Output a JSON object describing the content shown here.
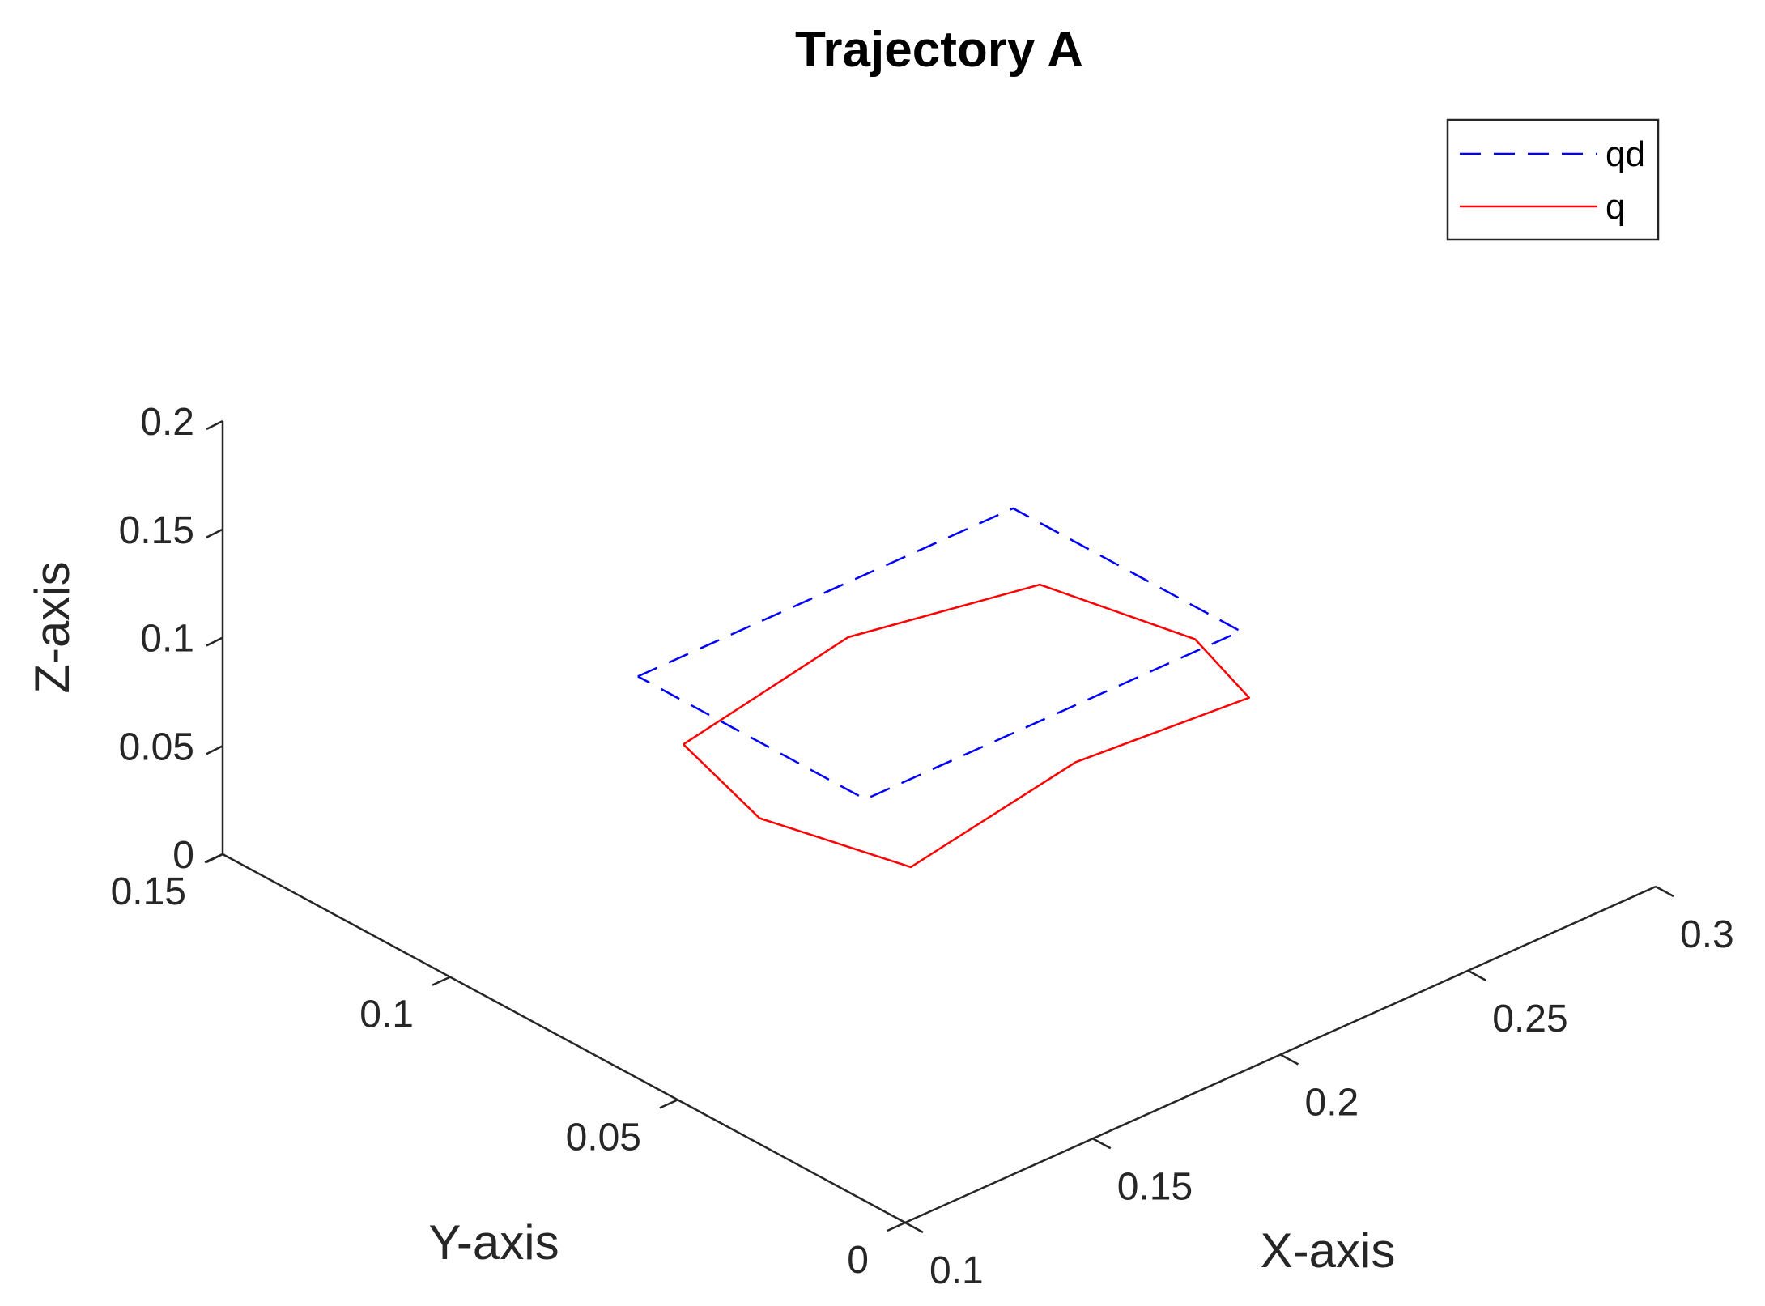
{
  "chart_data": {
    "type": "line",
    "title": "Trajectory A",
    "xlabel": "X-axis",
    "ylabel": "Y-axis",
    "zlabel": "Z-axis",
    "xlim": [
      0.1,
      0.3
    ],
    "ylim": [
      0,
      0.15
    ],
    "zlim": [
      0,
      0.2
    ],
    "xticks": [
      "0.1",
      "0.15",
      "0.2",
      "0.25",
      "0.3"
    ],
    "yticks": [
      "0",
      "0.05",
      "0.1",
      "0.15"
    ],
    "zticks": [
      "0",
      "0.05",
      "0.1",
      "0.15",
      "0.2"
    ],
    "grid": false,
    "legend_position": "top-right",
    "series": [
      {
        "name": "qd",
        "color": "#0000ff",
        "style": "dashed",
        "points": [
          [
            0.15,
            0.1,
            0.1
          ],
          [
            0.25,
            0.1,
            0.1
          ],
          [
            0.25,
            0.05,
            0.1
          ],
          [
            0.15,
            0.05,
            0.1
          ],
          [
            0.15,
            0.1,
            0.1
          ]
        ]
      },
      {
        "name": "q",
        "color": "#ff0000",
        "style": "solid",
        "points": [
          [
            0.15,
            0.09,
            0.08
          ],
          [
            0.2,
            0.095,
            0.085
          ],
          [
            0.245,
            0.09,
            0.08
          ],
          [
            0.25,
            0.06,
            0.085
          ],
          [
            0.245,
            0.044,
            0.08
          ],
          [
            0.2,
            0.045,
            0.084
          ],
          [
            0.15,
            0.04,
            0.08
          ],
          [
            0.14,
            0.065,
            0.082
          ],
          [
            0.15,
            0.09,
            0.08
          ]
        ]
      }
    ]
  }
}
